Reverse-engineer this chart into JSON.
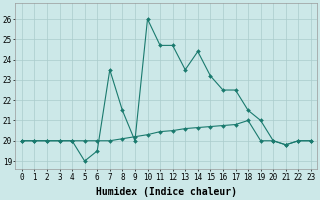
{
  "x": [
    0,
    1,
    2,
    3,
    4,
    5,
    6,
    7,
    8,
    9,
    10,
    11,
    12,
    13,
    14,
    15,
    16,
    17,
    18,
    19,
    20,
    21,
    22,
    23
  ],
  "line1": [
    20,
    20,
    20,
    20,
    20,
    19,
    19.5,
    23.5,
    21.5,
    20,
    26,
    24.7,
    24.7,
    23.5,
    24.4,
    23.2,
    22.5,
    22.5,
    21.5,
    21,
    20,
    19.8,
    20,
    20
  ],
  "line2": [
    20,
    20,
    20,
    20,
    20,
    20,
    20,
    20,
    20.1,
    20.2,
    20.3,
    20.45,
    20.5,
    20.6,
    20.65,
    20.7,
    20.75,
    20.8,
    21.0,
    20,
    20,
    19.8,
    20,
    20
  ],
  "line_color": "#1a7a6e",
  "bg_color": "#cce8e8",
  "grid_color": "#aacccc",
  "xlabel": "Humidex (Indice chaleur)",
  "ylabel_ticks": [
    19,
    20,
    21,
    22,
    23,
    24,
    25,
    26
  ],
  "xlim": [
    -0.5,
    23.5
  ],
  "ylim": [
    18.6,
    26.8
  ],
  "xlabel_fontsize": 7,
  "tick_fontsize": 5.5
}
